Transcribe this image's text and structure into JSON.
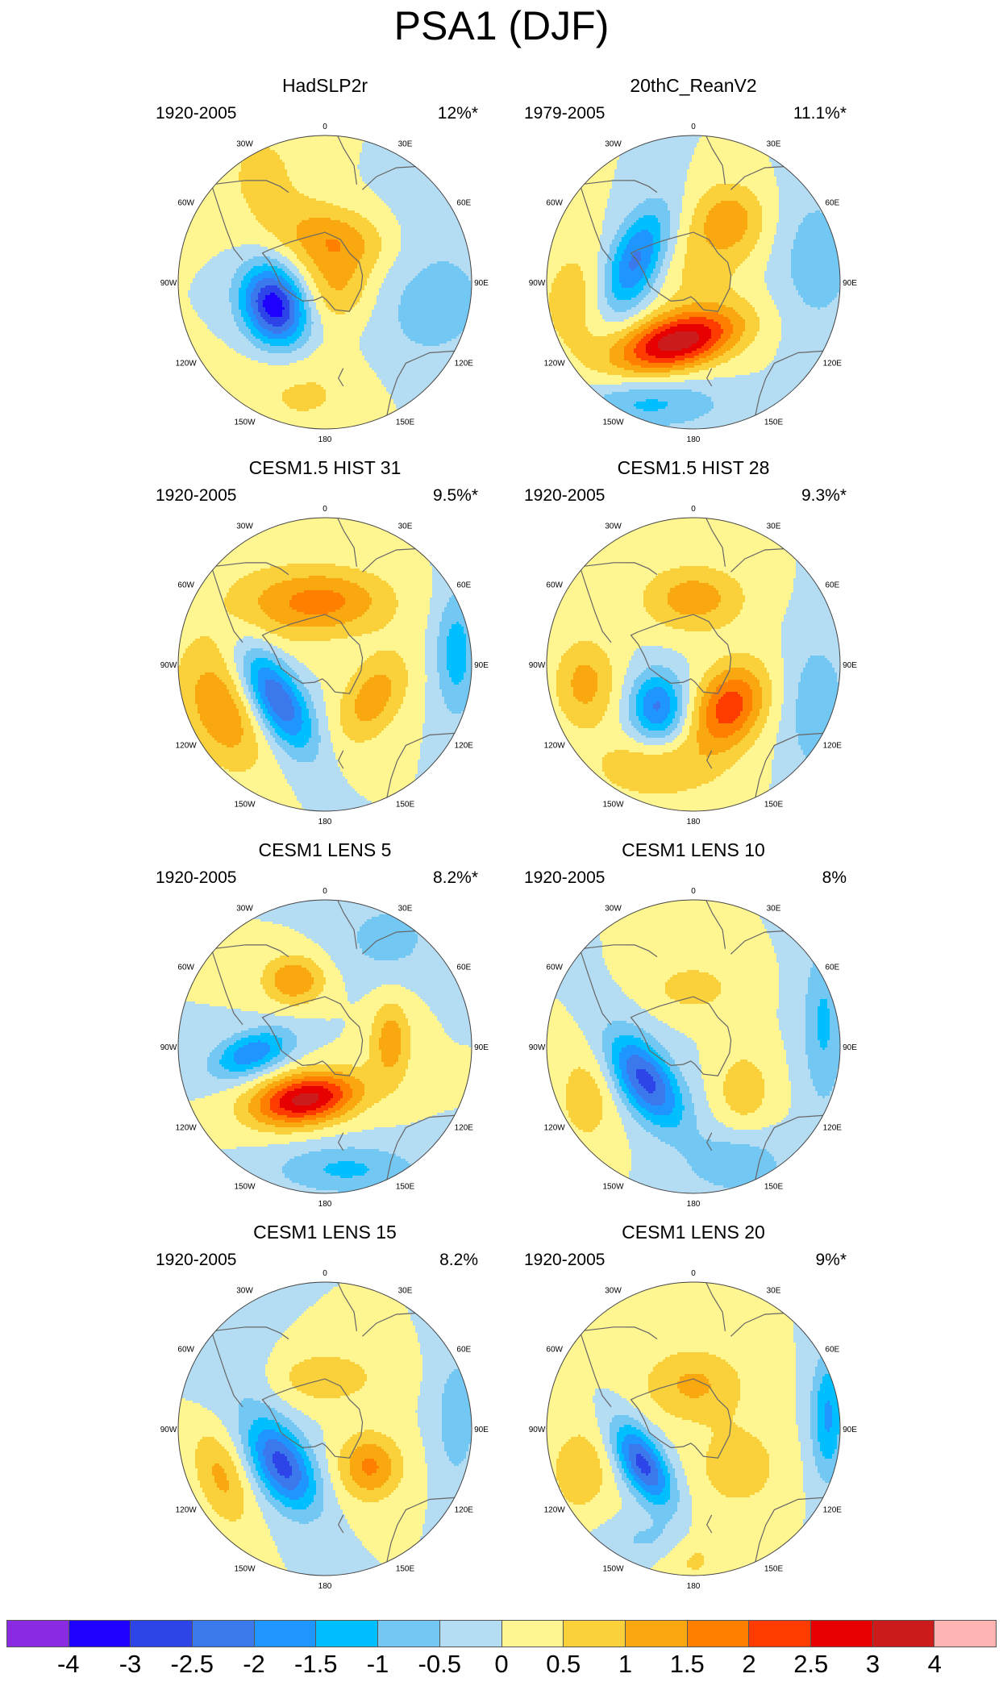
{
  "figure_title": "PSA1 (DJF)",
  "lon_labels": [
    "0",
    "30E",
    "60E",
    "90E",
    "120E",
    "150E",
    "180",
    "150W",
    "120W",
    "90W",
    "60W",
    "30W"
  ],
  "colors": {
    "-4.5": "#8a2be2",
    "-4": "#1e00ff",
    "-3": "#2d44e8",
    "-2.5": "#3a78eb",
    "-2": "#1f96ff",
    "-1.5": "#00bfff",
    "-1": "#72c7f3",
    "-0.5": "#b4dcf2",
    "0": "#fff591",
    "0.5": "#fad13a",
    "1": "#faa80f",
    "1.5": "#ff7f00",
    "2": "#ff3c00",
    "2.5": "#e60000",
    "3": "#cc1b1b",
    "3.5": "#ffb4b4",
    "coast": "#666666",
    "outline": "#444444"
  },
  "panels": [
    {
      "title": "HadSLP2r",
      "period": "1920-2005",
      "variance": "12%*",
      "blobs": [
        {
          "lon": -115,
          "rad": 0.38,
          "amp": -3.4,
          "sx": 0.15,
          "sy": 0.2,
          "rot": -20
        },
        {
          "lon": 15,
          "rad": 0.3,
          "amp": 1.4,
          "sx": 0.28,
          "sy": 0.16,
          "rot": 10
        },
        {
          "lon": 120,
          "rad": 0.1,
          "amp": 1.1,
          "sx": 0.2,
          "sy": 0.18,
          "rot": 30
        },
        {
          "lon": -30,
          "rad": 0.85,
          "amp": 0.6,
          "sx": 0.25,
          "sy": 0.3,
          "rot": 0
        },
        {
          "lon": 100,
          "rad": 0.7,
          "amp": -0.7,
          "sx": 0.4,
          "sy": 0.4,
          "rot": 0
        },
        {
          "lon": -170,
          "rad": 0.75,
          "amp": 0.6,
          "sx": 0.35,
          "sy": 0.25,
          "rot": 0
        }
      ]
    },
    {
      "title": "20thC_ReanV2",
      "period": "1979-2005",
      "variance": "11.1%*",
      "blobs": [
        {
          "lon": -165,
          "rad": 0.42,
          "amp": 3.3,
          "sx": 0.3,
          "sy": 0.13,
          "rot": -15
        },
        {
          "lon": -70,
          "rad": 0.42,
          "amp": -2.3,
          "sx": 0.13,
          "sy": 0.28,
          "rot": 25
        },
        {
          "lon": 30,
          "rad": 0.5,
          "amp": 1.2,
          "sx": 0.18,
          "sy": 0.18,
          "rot": 0
        },
        {
          "lon": -160,
          "rad": 0.88,
          "amp": -1.1,
          "sx": 0.35,
          "sy": 0.12,
          "rot": 0
        },
        {
          "lon": 10,
          "rad": 0.1,
          "amp": 0.6,
          "sx": 0.25,
          "sy": 0.25,
          "rot": 0
        },
        {
          "lon": 80,
          "rad": 0.85,
          "amp": -0.8,
          "sx": 0.2,
          "sy": 0.35,
          "rot": 0
        },
        {
          "lon": -100,
          "rad": 0.8,
          "amp": 0.8,
          "sx": 0.2,
          "sy": 0.3,
          "rot": 0
        }
      ]
    },
    {
      "title": "CESM1.5 HIST 31",
      "period": "1920-2005",
      "variance": "9.5%*",
      "blobs": [
        {
          "lon": -125,
          "rad": 0.4,
          "amp": -2.6,
          "sx": 0.12,
          "sy": 0.28,
          "rot": -30
        },
        {
          "lon": 0,
          "rad": 0.43,
          "amp": 1.6,
          "sx": 0.32,
          "sy": 0.16,
          "rot": 0
        },
        {
          "lon": 125,
          "rad": 0.4,
          "amp": 1.3,
          "sx": 0.14,
          "sy": 0.24,
          "rot": 30
        },
        {
          "lon": -115,
          "rad": 0.78,
          "amp": 1.4,
          "sx": 0.17,
          "sy": 0.3,
          "rot": -25
        },
        {
          "lon": 85,
          "rad": 0.9,
          "amp": -1.3,
          "sx": 0.1,
          "sy": 0.3,
          "rot": 0
        },
        {
          "lon": -60,
          "rad": 0.6,
          "amp": 0.5,
          "sx": 0.3,
          "sy": 0.3,
          "rot": 0
        }
      ]
    },
    {
      "title": "CESM1.5 HIST 28",
      "period": "1920-2005",
      "variance": "9.3%*",
      "blobs": [
        {
          "lon": -140,
          "rad": 0.38,
          "amp": -2.1,
          "sx": 0.13,
          "sy": 0.17,
          "rot": 0
        },
        {
          "lon": 140,
          "rad": 0.38,
          "amp": 2.3,
          "sx": 0.16,
          "sy": 0.22,
          "rot": 30
        },
        {
          "lon": 0,
          "rad": 0.45,
          "amp": 1.3,
          "sx": 0.25,
          "sy": 0.16,
          "rot": 0
        },
        {
          "lon": -100,
          "rad": 0.75,
          "amp": 1.2,
          "sx": 0.15,
          "sy": 0.22,
          "rot": 0
        },
        {
          "lon": -160,
          "rad": 0.75,
          "amp": 1.0,
          "sx": 0.3,
          "sy": 0.15,
          "rot": 0
        },
        {
          "lon": 110,
          "rad": 0.9,
          "amp": -0.9,
          "sx": 0.15,
          "sy": 0.35,
          "rot": 0
        }
      ]
    },
    {
      "title": "CESM1 LENS 5",
      "period": "1920-2005",
      "variance": "8.2%*",
      "blobs": [
        {
          "lon": -160,
          "rad": 0.38,
          "amp": 3.2,
          "sx": 0.26,
          "sy": 0.12,
          "rot": -10
        },
        {
          "lon": -95,
          "rad": 0.5,
          "amp": -1.9,
          "sx": 0.2,
          "sy": 0.1,
          "rot": -20
        },
        {
          "lon": -25,
          "rad": 0.5,
          "amp": 1.5,
          "sx": 0.15,
          "sy": 0.12,
          "rot": 0
        },
        {
          "lon": 85,
          "rad": 0.45,
          "amp": 1.3,
          "sx": 0.1,
          "sy": 0.2,
          "rot": 0
        },
        {
          "lon": 170,
          "rad": 0.85,
          "amp": -1.1,
          "sx": 0.35,
          "sy": 0.12,
          "rot": 0
        },
        {
          "lon": 30,
          "rad": 0.85,
          "amp": -0.7,
          "sx": 0.25,
          "sy": 0.2,
          "rot": 0
        }
      ]
    },
    {
      "title": "CESM1 LENS 10",
      "period": "1920-2005",
      "variance": "8%",
      "blobs": [
        {
          "lon": -125,
          "rad": 0.4,
          "amp": -2.7,
          "sx": 0.13,
          "sy": 0.26,
          "rot": -35
        },
        {
          "lon": 0,
          "rad": 0.4,
          "amp": 0.8,
          "sx": 0.2,
          "sy": 0.12,
          "rot": 0
        },
        {
          "lon": 130,
          "rad": 0.45,
          "amp": 0.9,
          "sx": 0.13,
          "sy": 0.18,
          "rot": 0
        },
        {
          "lon": -115,
          "rad": 0.8,
          "amp": 0.8,
          "sx": 0.15,
          "sy": 0.25,
          "rot": 0
        },
        {
          "lon": 80,
          "rad": 0.9,
          "amp": -1.1,
          "sx": 0.1,
          "sy": 0.4,
          "rot": 0
        },
        {
          "lon": 160,
          "rad": 0.85,
          "amp": -0.9,
          "sx": 0.25,
          "sy": 0.15,
          "rot": 0
        }
      ]
    },
    {
      "title": "CESM1 LENS 15",
      "period": "1920-2005",
      "variance": "8.2%",
      "blobs": [
        {
          "lon": -130,
          "rad": 0.38,
          "amp": -2.7,
          "sx": 0.13,
          "sy": 0.24,
          "rot": -30
        },
        {
          "lon": 130,
          "rad": 0.4,
          "amp": 1.6,
          "sx": 0.15,
          "sy": 0.16,
          "rot": 0
        },
        {
          "lon": 0,
          "rad": 0.35,
          "amp": 0.9,
          "sx": 0.26,
          "sy": 0.13,
          "rot": 0
        },
        {
          "lon": -115,
          "rad": 0.78,
          "amp": 1.1,
          "sx": 0.12,
          "sy": 0.25,
          "rot": -20
        },
        {
          "lon": 85,
          "rad": 0.9,
          "amp": -0.9,
          "sx": 0.1,
          "sy": 0.3,
          "rot": 0
        },
        {
          "lon": -60,
          "rad": 0.7,
          "amp": -0.4,
          "sx": 0.2,
          "sy": 0.2,
          "rot": 0
        }
      ]
    },
    {
      "title": "CESM1 LENS 20",
      "period": "1920-2005",
      "variance": "9%*",
      "blobs": [
        {
          "lon": -125,
          "rad": 0.42,
          "amp": -2.7,
          "sx": 0.1,
          "sy": 0.22,
          "rot": -30
        },
        {
          "lon": 0,
          "rad": 0.3,
          "amp": 1.1,
          "sx": 0.25,
          "sy": 0.18,
          "rot": 0
        },
        {
          "lon": 130,
          "rad": 0.4,
          "amp": 0.9,
          "sx": 0.2,
          "sy": 0.2,
          "rot": 0
        },
        {
          "lon": -110,
          "rad": 0.82,
          "amp": 0.9,
          "sx": 0.15,
          "sy": 0.22,
          "rot": 0
        },
        {
          "lon": 85,
          "rad": 0.92,
          "amp": -1.6,
          "sx": 0.08,
          "sy": 0.3,
          "rot": 0
        },
        {
          "lon": -160,
          "rad": 0.8,
          "amp": -0.6,
          "sx": 0.25,
          "sy": 0.1,
          "rot": 0
        },
        {
          "lon": 180,
          "rad": 0.85,
          "amp": 0.7,
          "sx": 0.15,
          "sy": 0.15,
          "rot": 0
        }
      ]
    }
  ],
  "colorbar": {
    "levels": [
      "-4",
      "-3",
      "-2.5",
      "-2",
      "-1.5",
      "-1",
      "-0.5",
      "0",
      "0.5",
      "1",
      "1.5",
      "2",
      "2.5",
      "3",
      "4"
    ],
    "colors": [
      "#8a2be2",
      "#1e00ff",
      "#2d44e8",
      "#3a78eb",
      "#1f96ff",
      "#00bfff",
      "#72c7f3",
      "#b4dcf2",
      "#fff591",
      "#fad13a",
      "#faa80f",
      "#ff7f00",
      "#ff3c00",
      "#e60000",
      "#cc1b1b",
      "#ffb4b4"
    ]
  }
}
